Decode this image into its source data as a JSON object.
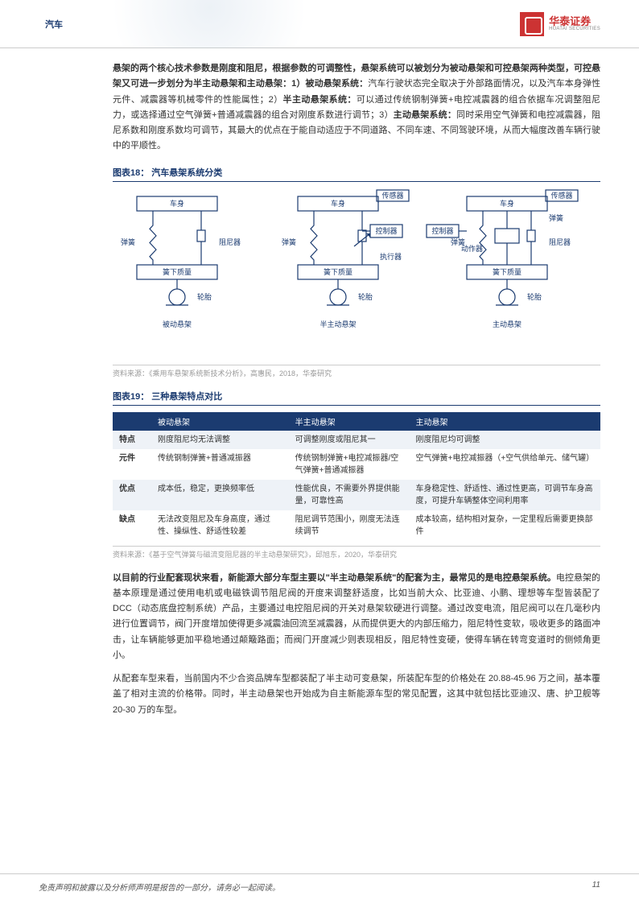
{
  "header": {
    "category": "汽车",
    "logo_cn": "华泰证券",
    "logo_en": "HUATAI SECURITIES"
  },
  "paragraphs": {
    "p1_intro": "悬架的两个核心技术参数是刚度和阻尼，根据参数的可调整性，悬架系统可以被划分为被动悬架和可控悬架两种类型，可控悬架又可进一步划分为半主动悬架和主动悬架：1）被动悬架系统：",
    "p1_a": "汽车行驶状态完全取决于外部路面情况，以及汽车本身弹性元件、减震器等机械零件的性能属性；2）",
    "p1_b_bold": "半主动悬架系统：",
    "p1_b": "可以通过传统钢制弹簧+电控减震器的组合依据车况调整阻尼力，或选择通过空气弹簧+普通减震器的组合对刚度系数进行调节；3）",
    "p1_c_bold": "主动悬架系统：",
    "p1_c": "同时采用空气弹簧和电控减震器，阻尼系数和刚度系数均可调节，其最大的优点在于能自动适应于不同道路、不同车速、不同驾驶环境，从而大幅度改善车辆行驶中的平顺性。",
    "p2_bold": "以目前的行业配套现状来看，新能源大部分车型主要以\"半主动悬架系统\"的配套为主，最常见的是电控悬架系统。",
    "p2": "电控悬架的基本原理是通过使用电机或电磁铁调节阻尼阀的开度来调整舒适度，比如当前大众、比亚迪、小鹏、理想等车型皆装配了 DCC（动态底盘控制系统）产品，主要通过电控阻尼阀的开关对悬架软硬进行调整。通过改变电流，阻尼阀可以在几毫秒内进行位置调节，阀门开度增加使得更多减震油回流至减震器，从而提供更大的内部压缩力，阻尼特性变软，吸收更多的路面冲击，让车辆能够更加平稳地通过颠簸路面；而阀门开度减少则表现相反，阻尼特性变硬，使得车辆在转弯变道时的侧倾角更小。",
    "p3": "从配套车型来看，当前国内不少合资品牌车型都装配了半主动可变悬架，所装配车型的价格处在 20.88-45.96 万之间，基本覆盖了相对主流的价格带。同时，半主动悬架也开始成为自主新能源车型的常见配置，这其中就包括比亚迪汉、唐、护卫舰等 20-30 万的车型。"
  },
  "figure18": {
    "title": "图表18： 汽车悬架系统分类",
    "source": "资料来源：《乘用车悬架系统新技术分析》，高惠民，2018，华泰研究",
    "labels": {
      "body": "车身",
      "spring": "弹簧",
      "damper": "阻尼器",
      "unsprung": "簧下质量",
      "tire": "轮胎",
      "sensor": "传感器",
      "controller": "控制器",
      "actuator": "执行器",
      "actuator2": "动作器",
      "cap1": "被动悬架",
      "cap2": "半主动悬架",
      "cap3": "主动悬架"
    },
    "style": {
      "stroke": "#1b3b70",
      "stroke_width": 1.2,
      "text_color": "#1b3b70",
      "font_size": 9
    }
  },
  "figure19": {
    "title": "图表19： 三种悬架特点对比",
    "source": "资料来源：《基于空气弹簧与磁流变阻尼器的半主动悬架研究》，邱旭东，2020，华泰研究",
    "columns": [
      "",
      "被动悬架",
      "半主动悬架",
      "主动悬架"
    ],
    "rows": [
      {
        "k": "特点",
        "a": "刚度阻尼均无法调整",
        "b": "可调整刚度或阻尼其一",
        "c": "刚度阻尼均可调整"
      },
      {
        "k": "元件",
        "a": "传统钢制弹簧+普通减振器",
        "b": "传统钢制弹簧+电控减振器/空气弹簧+普通减振器",
        "c": "空气弹簧+电控减振器（+空气供给单元、储气罐）"
      },
      {
        "k": "优点",
        "a": "成本低，稳定，更换频率低",
        "b": "性能优良，不需要外界提供能量，可靠性高",
        "c": "车身稳定性、舒适性、通过性更高，可调节车身高度，可提升车辆整体空间利用率"
      },
      {
        "k": "缺点",
        "a": "无法改变阻尼及车身高度，通过性、操纵性、舒适性较差",
        "b": "阻尼调节范围小，刚度无法连续调节",
        "c": "成本较高，结构相对复杂，一定里程后需要更换部件"
      }
    ],
    "style": {
      "header_bg": "#1b3b70",
      "header_color": "#ffffff",
      "odd_row_bg": "#eef2f7",
      "font_size": 10
    }
  },
  "footer": {
    "disclaimer": "免责声明和披露以及分析师声明是报告的一部分，请务必一起阅读。",
    "page": "11"
  }
}
